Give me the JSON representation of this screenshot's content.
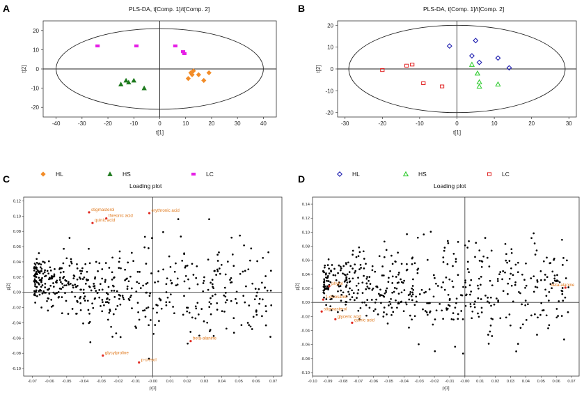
{
  "chart_data": [
    {
      "panel": "A",
      "type": "scatter",
      "title": "PLS-DA, t[Comp. 1]/t[Comp. 2]",
      "xlabel": "t[1]",
      "ylabel": "t[2]",
      "xlim": [
        -45,
        45
      ],
      "ylim": [
        -25,
        25
      ],
      "xticks": [
        -40,
        -30,
        -20,
        -10,
        0,
        10,
        20,
        30,
        40
      ],
      "yticks": [
        -20,
        -10,
        0,
        10,
        20
      ],
      "ellipse": {
        "rx": 40,
        "ry": 21
      },
      "series": [
        {
          "name": "HL",
          "marker": "diamond",
          "color": "#f28c28",
          "filled": true,
          "points": [
            [
              11,
              -5
            ],
            [
              12,
              -2
            ],
            [
              12.5,
              -3
            ],
            [
              13,
              -1
            ],
            [
              15,
              -3
            ],
            [
              17,
              -6
            ],
            [
              19,
              -2
            ]
          ]
        },
        {
          "name": "HS",
          "marker": "triangle",
          "color": "#1e7a1e",
          "filled": true,
          "points": [
            [
              -15,
              -8
            ],
            [
              -13,
              -6
            ],
            [
              -12,
              -7
            ],
            [
              -10,
              -6
            ],
            [
              -6,
              -10
            ]
          ]
        },
        {
          "name": "LC",
          "marker": "square",
          "color": "#e61ee6",
          "filled": true,
          "points": [
            [
              -24,
              12
            ],
            [
              -9,
              12
            ],
            [
              6,
              12
            ],
            [
              9,
              9
            ],
            [
              9.5,
              8
            ]
          ]
        }
      ]
    },
    {
      "panel": "B",
      "type": "scatter",
      "title": "PLS-DA, t[Comp. 1]/t[Comp. 2]",
      "xlabel": "t[1]",
      "ylabel": "t[2]",
      "xlim": [
        -32,
        32
      ],
      "ylim": [
        -22,
        22
      ],
      "xticks": [
        -30,
        -20,
        -10,
        0,
        10,
        20,
        30
      ],
      "yticks": [
        -20,
        -10,
        0,
        10,
        20
      ],
      "ellipse": {
        "rx": 29,
        "ry": 20
      },
      "series": [
        {
          "name": "HL",
          "marker": "diamond",
          "color": "#1f1fb0",
          "filled": false,
          "points": [
            [
              -2,
              10.5
            ],
            [
              4,
              6
            ],
            [
              5,
              13
            ],
            [
              6,
              3
            ],
            [
              11,
              5
            ],
            [
              14,
              0.5
            ]
          ]
        },
        {
          "name": "HS",
          "marker": "triangle",
          "color": "#33cc33",
          "filled": false,
          "points": [
            [
              4,
              2
            ],
            [
              5.5,
              -2
            ],
            [
              6,
              -6
            ],
            [
              6,
              -8
            ],
            [
              11,
              -7
            ]
          ]
        },
        {
          "name": "LC",
          "marker": "square",
          "color": "#e02020",
          "filled": false,
          "points": [
            [
              -20,
              -0.5
            ],
            [
              -13.5,
              1.5
            ],
            [
              -12,
              2
            ],
            [
              -9,
              -6.5
            ],
            [
              -4,
              -8
            ]
          ]
        }
      ]
    },
    {
      "panel": "C",
      "type": "scatter",
      "title": "Loading plot",
      "xlabel": "p[1]",
      "ylabel": "p[2]",
      "xlim": [
        -0.075,
        0.075
      ],
      "ylim": [
        -0.11,
        0.125
      ],
      "xticks": [
        "-0.07",
        "-0.06",
        "-0.05",
        "-0.04",
        "-0.03",
        "-0.02",
        "-0.01",
        "-0.00",
        "0.01",
        "0.02",
        "0.03",
        "0.04",
        "0.05",
        "0.06",
        "0.07"
      ],
      "yticks": [
        "-0.10",
        "-0.08",
        "-0.06",
        "-0.04",
        "-0.02",
        "0.00",
        "0.02",
        "0.04",
        "0.06",
        "0.08",
        "0.10",
        "0.12"
      ],
      "cloud_seed": 7,
      "cloud_count": 520,
      "annotations": [
        {
          "label": "stigmasterol",
          "x": -0.037,
          "y": 0.105
        },
        {
          "label": "threonic acid",
          "x": -0.027,
          "y": 0.097
        },
        {
          "label": "quinic acid",
          "x": -0.035,
          "y": 0.091
        },
        {
          "label": "erythronic acid",
          "x": -0.002,
          "y": 0.104
        },
        {
          "label": "beta-alanine",
          "x": 0.022,
          "y": -0.064
        },
        {
          "label": "glycylproline",
          "x": -0.029,
          "y": -0.083
        },
        {
          "label": "p-cresol",
          "x": -0.008,
          "y": -0.092
        }
      ]
    },
    {
      "panel": "D",
      "type": "scatter",
      "title": "Loading plot",
      "xlabel": "p[1]",
      "ylabel": "p[2]",
      "xlim": [
        -0.1,
        0.075
      ],
      "ylim": [
        -0.105,
        0.15
      ],
      "xticks": [
        "-0.10",
        "-0.09",
        "-0.08",
        "-0.07",
        "-0.06",
        "-0.05",
        "-0.04",
        "-0.03",
        "-0.02",
        "-0.01",
        "-0.00",
        "0.01",
        "0.02",
        "0.03",
        "0.04",
        "0.05",
        "0.06",
        "0.07"
      ],
      "yticks": [
        "-0.10",
        "-0.08",
        "-0.06",
        "-0.04",
        "-0.02",
        "0.00",
        "0.02",
        "0.04",
        "0.06",
        "0.08",
        "0.10",
        "0.12",
        "0.14"
      ],
      "cloud_seed": 13,
      "cloud_count": 520,
      "annotations": [
        {
          "label": "phytol",
          "x": -0.089,
          "y": 0.023
        },
        {
          "label": "1-eicosanol",
          "x": -0.093,
          "y": 0.004
        },
        {
          "label": "stigmasterol",
          "x": -0.094,
          "y": -0.013
        },
        {
          "label": "glyceric acid",
          "x": -0.085,
          "y": -0.024
        },
        {
          "label": "quinic acid",
          "x": -0.074,
          "y": -0.029
        },
        {
          "label": "beta-alanine",
          "x": 0.066,
          "y": 0.021
        }
      ]
    }
  ]
}
